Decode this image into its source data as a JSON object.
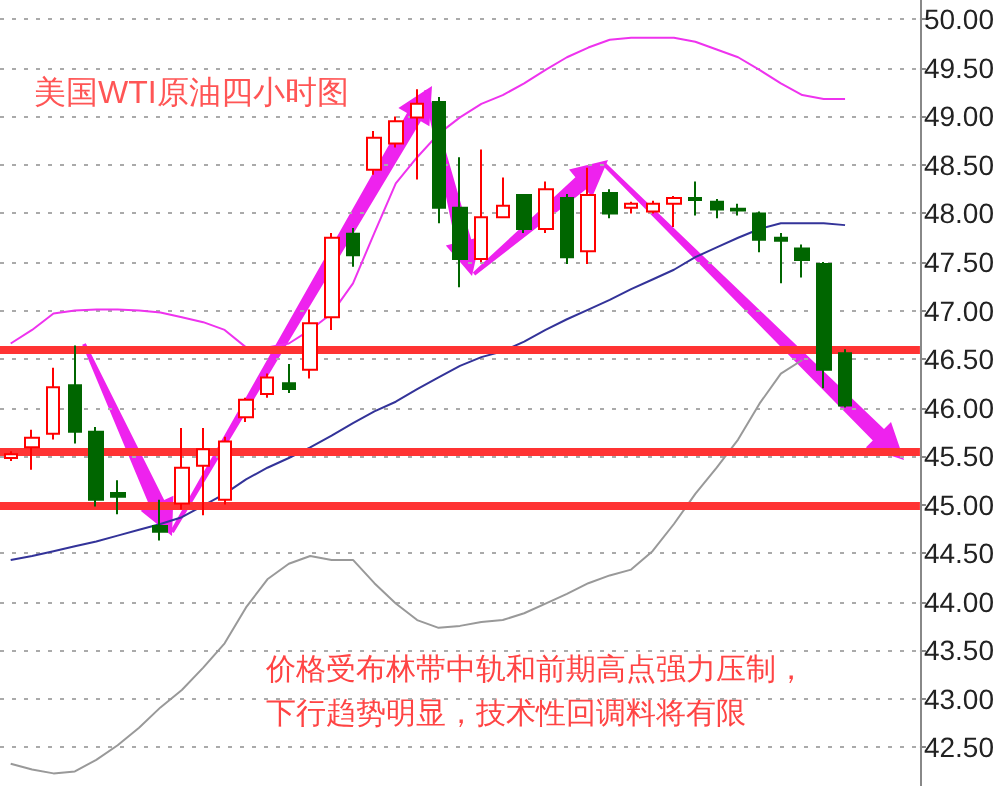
{
  "chart_data": {
    "type": "candlestick",
    "title": "美国WTI原油四小时图",
    "annotations": [
      "价格受布林带中轨和前期高点强力压制，",
      "下行趋势明显，技术性回调料将有限"
    ],
    "categories": [
      null,
      null,
      null,
      null,
      null,
      null,
      null,
      null,
      null,
      null,
      null,
      null,
      null,
      null,
      null,
      null,
      null,
      null,
      null,
      null,
      null,
      null,
      null,
      null,
      null,
      null,
      null,
      null,
      null,
      null,
      null,
      null,
      null,
      null,
      null,
      null,
      null,
      null,
      null,
      null,
      null,
      null,
      null
    ],
    "ohlc": [
      [
        45.48,
        45.55,
        45.45,
        45.52
      ],
      [
        45.59,
        45.77,
        45.36,
        45.69
      ],
      [
        45.73,
        46.41,
        45.67,
        46.21
      ],
      [
        46.23,
        46.64,
        45.63,
        45.75
      ],
      [
        45.75,
        45.8,
        44.98,
        45.05
      ],
      [
        45.12,
        45.25,
        44.9,
        45.08
      ],
      null,
      [
        44.78,
        45.05,
        44.63,
        44.72
      ],
      [
        45.01,
        45.79,
        44.95,
        45.38
      ],
      [
        45.4,
        45.79,
        44.89,
        45.57
      ],
      [
        45.05,
        45.7,
        45.0,
        45.65
      ],
      [
        45.9,
        46.1,
        45.85,
        46.08
      ],
      [
        46.14,
        46.35,
        46.1,
        46.31
      ],
      [
        46.25,
        46.45,
        46.15,
        46.19
      ],
      [
        46.39,
        47.01,
        46.3,
        46.87
      ],
      [
        46.93,
        47.8,
        46.8,
        47.75
      ],
      [
        47.79,
        47.85,
        47.45,
        47.57
      ],
      [
        48.45,
        48.85,
        48.4,
        48.78
      ],
      [
        48.72,
        49.0,
        48.68,
        48.95
      ],
      [
        48.99,
        49.28,
        48.35,
        49.13
      ],
      [
        49.15,
        49.2,
        47.9,
        48.06
      ],
      [
        48.06,
        48.58,
        47.24,
        47.53
      ],
      [
        47.53,
        48.66,
        47.5,
        47.96
      ],
      [
        47.96,
        48.37,
        47.95,
        48.08
      ],
      [
        48.19,
        48.2,
        47.8,
        47.84
      ],
      [
        47.84,
        48.33,
        47.8,
        48.25
      ],
      [
        48.16,
        48.2,
        47.48,
        47.55
      ],
      [
        47.61,
        48.47,
        47.48,
        48.19
      ],
      [
        48.21,
        48.25,
        47.95,
        48.0
      ],
      [
        48.06,
        48.12,
        48.0,
        48.1
      ],
      [
        48.02,
        48.13,
        48.0,
        48.1
      ],
      [
        48.1,
        48.18,
        47.86,
        48.16
      ],
      [
        48.16,
        48.33,
        47.98,
        48.14
      ],
      [
        48.12,
        48.15,
        47.95,
        48.04
      ],
      [
        48.05,
        48.1,
        47.98,
        48.03
      ],
      [
        48.0,
        48.02,
        47.6,
        47.73
      ],
      [
        47.75,
        47.8,
        47.28,
        47.72
      ],
      [
        47.64,
        47.68,
        47.34,
        47.52
      ],
      [
        47.48,
        47.5,
        46.2,
        46.39
      ],
      [
        46.56,
        46.6,
        46.0,
        46.02
      ],
      null,
      null,
      null
    ],
    "series": [
      {
        "type": "line",
        "color": "#ee33ee",
        "values": [
          46.66,
          46.8,
          46.97,
          47.0,
          47.01,
          47.01,
          47.0,
          46.98,
          46.93,
          46.88,
          46.8,
          46.62,
          46.62,
          46.66,
          46.8,
          46.97,
          47.28,
          47.8,
          48.31,
          48.58,
          48.82,
          48.99,
          49.13,
          49.22,
          49.34,
          49.48,
          49.61,
          49.71,
          49.79,
          49.81,
          49.81,
          49.81,
          49.77,
          49.69,
          49.61,
          49.48,
          49.34,
          49.22,
          49.18,
          49.18,
          null,
          null,
          null
        ]
      },
      {
        "type": "line",
        "color": "#333399",
        "values": [
          44.43,
          44.47,
          44.52,
          44.57,
          44.62,
          44.68,
          44.74,
          44.8,
          44.87,
          44.99,
          45.11,
          45.26,
          45.38,
          45.48,
          45.59,
          45.71,
          45.84,
          45.96,
          46.06,
          46.19,
          46.31,
          46.43,
          46.52,
          46.58,
          46.68,
          46.8,
          46.91,
          47.01,
          47.11,
          47.22,
          47.32,
          47.42,
          47.55,
          47.65,
          47.75,
          47.84,
          47.9,
          47.9,
          47.9,
          47.88,
          null,
          null,
          null
        ]
      },
      {
        "type": "line",
        "color": "#999999",
        "values": [
          42.33,
          42.27,
          42.23,
          42.25,
          42.37,
          42.52,
          42.7,
          42.91,
          43.09,
          43.32,
          43.57,
          43.94,
          44.23,
          44.39,
          44.47,
          44.43,
          44.43,
          44.19,
          43.98,
          43.81,
          43.73,
          43.75,
          43.79,
          43.81,
          43.88,
          43.98,
          44.08,
          44.19,
          44.27,
          44.33,
          44.52,
          44.8,
          45.11,
          45.38,
          45.67,
          46.04,
          46.35,
          46.49,
          null,
          null,
          null,
          null,
          null
        ]
      }
    ],
    "ref_lines": [
      {
        "axis": "y",
        "value": 46.6,
        "color": "#ff3333"
      },
      {
        "axis": "y",
        "value": 45.55,
        "color": "#ff3333"
      },
      {
        "axis": "y",
        "value": 45.0,
        "color": "#ff3333"
      }
    ],
    "ylim": [
      42.1,
      50.2
    ],
    "yticks": [
      {
        "value": 42.5,
        "label": "42.50"
      },
      {
        "value": 43,
        "label": "43.00"
      },
      {
        "value": 43.5,
        "label": "43.50"
      },
      {
        "value": 44,
        "label": "44.00"
      },
      {
        "value": 44.5,
        "label": "44.50"
      },
      {
        "value": 45,
        "label": "45.00"
      },
      {
        "value": 45.5,
        "label": "45.50"
      },
      {
        "value": 46,
        "label": "46.00"
      },
      {
        "value": 46.5,
        "label": "46.50"
      },
      {
        "value": 47,
        "label": "47.00"
      },
      {
        "value": 47.5,
        "label": "47.50"
      },
      {
        "value": 48,
        "label": "48.00"
      },
      {
        "value": 48.5,
        "label": "48.50"
      },
      {
        "value": 49,
        "label": "49.00"
      },
      {
        "value": 49.5,
        "label": "49.50"
      },
      {
        "value": 50,
        "label": "50.00"
      }
    ],
    "grid": "y",
    "tick_labels": "y"
  }
}
